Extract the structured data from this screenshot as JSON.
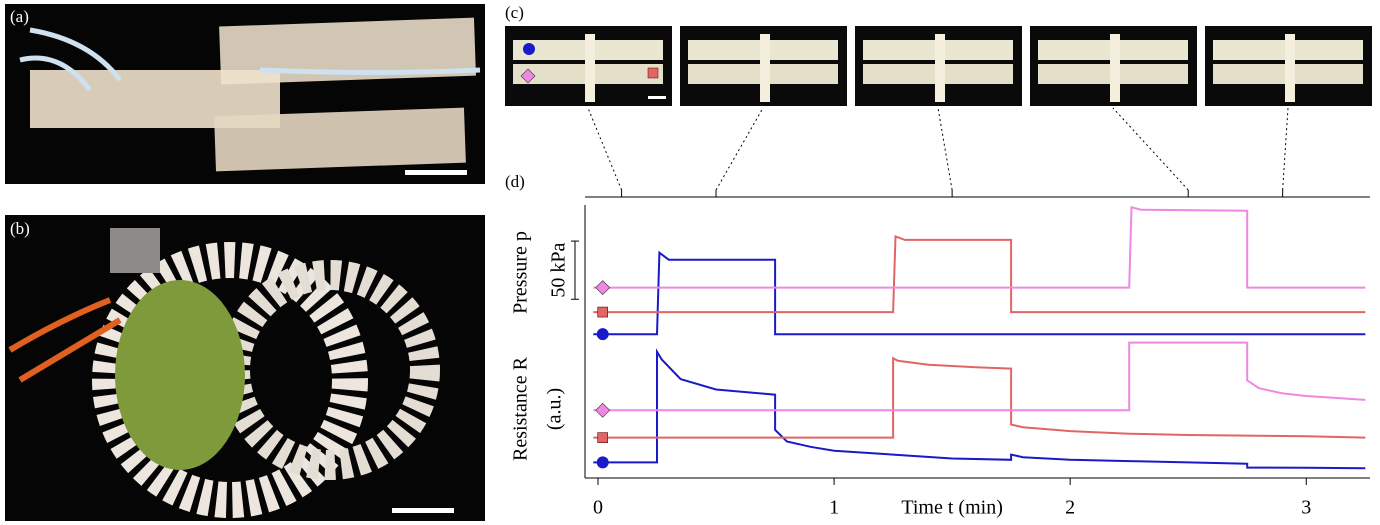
{
  "panel_labels": [
    "(a)",
    "(b)",
    "(c)",
    "(d)"
  ],
  "chart_data": [
    {
      "type": "line",
      "y_label": "Pressure p",
      "xlim": [
        -0.055,
        3.27
      ],
      "ylim": [
        -5,
        111
      ],
      "snapshot_x": [
        0.1,
        0.5,
        1.5,
        2.5,
        2.9
      ],
      "scale_bar": {
        "value": 50,
        "label": "50 kPa"
      },
      "series": [
        {
          "color": "#1a1ac8",
          "x": [
            -0.02,
            0.25,
            0.26,
            0.3,
            0.75,
            0.75,
            3.25
          ],
          "values": [
            0,
            0,
            70,
            64,
            64,
            0,
            0
          ]
        },
        {
          "color": "#e06666",
          "x": [
            -0.02,
            1.25,
            1.26,
            1.3,
            1.75,
            1.75,
            3.25
          ],
          "values": [
            19,
            19,
            84,
            81,
            81,
            19,
            19
          ]
        },
        {
          "color": "#ee88e0",
          "x": [
            -0.02,
            2.25,
            2.26,
            2.3,
            2.75,
            2.75,
            3.25
          ],
          "values": [
            40,
            40,
            109,
            107,
            106,
            40,
            40
          ]
        }
      ]
    },
    {
      "type": "line",
      "y_label": "Resistance R",
      "y_unit": "(a.u.)",
      "x_label": "Time t (min)",
      "xlim": [
        -0.055,
        3.27
      ],
      "ylim": [
        -6,
        100
      ],
      "xticks": [
        0,
        1,
        2,
        3
      ],
      "series": [
        {
          "color": "#1a1ac8",
          "x": [
            -0.02,
            0.25,
            0.25,
            0.27,
            0.35,
            0.5,
            0.75,
            0.75,
            0.8,
            0.9,
            1.0,
            1.25,
            1.5,
            1.75,
            1.75,
            1.8,
            2.0,
            2.25,
            2.5,
            2.75,
            2.75,
            3.0,
            3.25
          ],
          "values": [
            6,
            6,
            91,
            85,
            70,
            62,
            58,
            31,
            22,
            18,
            15,
            12,
            9,
            8,
            12,
            10,
            8,
            7,
            6,
            5,
            2,
            1.8,
            1.5
          ]
        },
        {
          "color": "#e06666",
          "x": [
            -0.02,
            1.25,
            1.25,
            1.27,
            1.4,
            1.6,
            1.75,
            1.75,
            1.8,
            2.0,
            2.25,
            2.5,
            3.0,
            3.25
          ],
          "values": [
            25,
            25,
            86,
            84,
            81,
            79,
            78,
            35,
            33,
            30,
            28,
            27,
            26,
            25
          ]
        },
        {
          "color": "#ee88e0",
          "x": [
            -0.02,
            2.25,
            2.25,
            2.75,
            2.75,
            2.8,
            2.9,
            3.0,
            3.25
          ],
          "values": [
            46,
            46,
            98,
            98,
            69,
            63,
            59,
            57,
            54
          ]
        }
      ]
    }
  ]
}
